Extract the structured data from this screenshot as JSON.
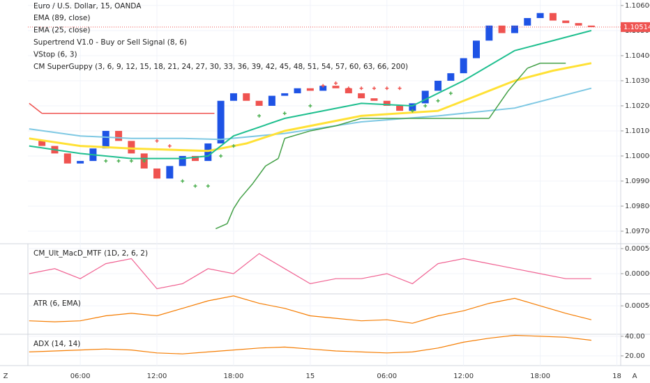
{
  "chart_data": [
    {
      "type": "candlestick",
      "title": "Euro / U.S. Dollar, 15, OANDA",
      "x": [
        2,
        3,
        4,
        5,
        6,
        7,
        8,
        9,
        10,
        11,
        12,
        13,
        14,
        15,
        16,
        17,
        18,
        19,
        20,
        21,
        22,
        23,
        24,
        25,
        26,
        27,
        28,
        29,
        30,
        31,
        32,
        33,
        34,
        35,
        36,
        37,
        38,
        39,
        40,
        41,
        42,
        43,
        44,
        45,
        46
      ],
      "close": [
        1.1006,
        1.1004,
        1.1001,
        1.0997,
        1.0998,
        1.1003,
        1.101,
        1.1006,
        1.1001,
        1.0995,
        1.0991,
        1.0996,
        1.1,
        1.0998,
        1.1005,
        1.1022,
        1.1025,
        1.1022,
        1.102,
        1.1024,
        1.1025,
        1.1027,
        1.1026,
        1.1028,
        1.1027,
        1.1025,
        1.1023,
        1.1022,
        1.102,
        1.1018,
        1.1021,
        1.1026,
        1.103,
        1.1033,
        1.1039,
        1.1046,
        1.1052,
        1.1049,
        1.1052,
        1.1055,
        1.1057,
        1.1054,
        1.1053,
        1.1052,
        1.10514
      ],
      "up_color": "#1e53e5",
      "down_color": "#ef5350",
      "series": [
        {
          "name": "EMA (89, close)",
          "color": "#7ec8e3",
          "style": "line",
          "x": [
            2,
            6,
            10,
            14,
            17,
            22,
            28,
            34,
            40,
            46
          ],
          "values": [
            1.10108,
            1.1008,
            1.1007,
            1.1007,
            1.10066,
            1.1009,
            1.10136,
            1.1016,
            1.10191,
            1.1027
          ]
        },
        {
          "name": "EMA (25, close)",
          "color": "#ffe135",
          "style": "line",
          "x": [
            2,
            6,
            10,
            16,
            19,
            22,
            28,
            34,
            37,
            40,
            43,
            46
          ],
          "values": [
            1.1007,
            1.1004,
            1.1003,
            1.1002,
            1.1005,
            1.101,
            1.1016,
            1.1018,
            1.1024,
            1.103,
            1.1034,
            1.1037
          ]
        },
        {
          "name": "Supertrend V1.0 - Buy or Sell Signal (8, 6)",
          "color": "#43a047",
          "style": "segments",
          "x": [
            2,
            3,
            16.5,
            16.6,
            16.6,
            17.5,
            18,
            18.5,
            19.5,
            20.5,
            21.5,
            22,
            24,
            26,
            28,
            38,
            39.5,
            41,
            42,
            44
          ],
          "values": [
            1.1021,
            1.1017,
            1.1017,
            null,
            1.0971,
            1.0973,
            1.0979,
            1.0983,
            1.0989,
            1.0996,
            1.0999,
            1.1007,
            1.101,
            1.1012,
            1.1015,
            1.1015,
            1.1026,
            1.1035,
            1.1037,
            1.1037
          ],
          "colors": [
            "#ef5350",
            "#ef5350",
            "#ef5350",
            "#ef5350",
            "#43a047",
            "#43a047",
            "#43a047",
            "#43a047",
            "#43a047",
            "#43a047",
            "#43a047",
            "#43a047",
            "#43a047",
            "#43a047",
            "#43a047",
            "#43a047",
            "#43a047",
            "#43a047",
            "#43a047",
            "#43a047"
          ]
        },
        {
          "name": "VStop (6, 3)",
          "color": "#4caf50",
          "style": "cross",
          "x": [
            8,
            9,
            10,
            11,
            12,
            13,
            14,
            15,
            16,
            17,
            18,
            20,
            22,
            24,
            25,
            26,
            27,
            28,
            29,
            30,
            31,
            32,
            33,
            34,
            35
          ],
          "values": [
            1.0998,
            1.0998,
            1.0998,
            1.0998,
            1.1006,
            1.1004,
            1.099,
            1.0988,
            1.0988,
            1.1,
            1.1004,
            1.1016,
            1.1017,
            1.102,
            1.1028,
            1.1029,
            1.1027,
            1.1027,
            1.1027,
            1.1027,
            1.1027,
            1.1018,
            1.102,
            1.1022,
            1.1025
          ],
          "colors": [
            "#4caf50",
            "#4caf50",
            "#4caf50",
            "#4caf50",
            "#ef5350",
            "#ef5350",
            "#4caf50",
            "#4caf50",
            "#4caf50",
            "#4caf50",
            "#4caf50",
            "#4caf50",
            "#4caf50",
            "#4caf50",
            "#ef5350",
            "#ef5350",
            "#ef5350",
            "#ef5350",
            "#ef5350",
            "#ef5350",
            "#ef5350",
            "#4caf50",
            "#4caf50",
            "#4caf50",
            "#4caf50"
          ]
        },
        {
          "name": "CM SuperGuppy (3, 6, 9, 12, 15, 18, 21, 24, 27, 30, 33, 36, 39, 42, 45, 48, 51, 54, 57, 60, 63, 66, 200)",
          "color": "#1fbf8f",
          "style": "line",
          "x": [
            2,
            6,
            10,
            14,
            16,
            18,
            22,
            28,
            32,
            36,
            40,
            46
          ],
          "values": [
            1.1004,
            1.1001,
            1.0999,
            1.0999,
            1.1,
            1.1008,
            1.1015,
            1.1021,
            1.102,
            1.103,
            1.1042,
            1.105
          ]
        }
      ],
      "last_price": {
        "value": 1.10514,
        "label": "1.10514"
      },
      "xlim": [
        1.9,
        48.3
      ],
      "xticks": [
        {
          "value": 6,
          "label": "06:00"
        },
        {
          "value": 12,
          "label": "12:00"
        },
        {
          "value": 18,
          "label": "18:00"
        },
        {
          "value": 24,
          "label": "15"
        },
        {
          "value": 30,
          "label": "06:00"
        },
        {
          "value": 36,
          "label": "12:00"
        },
        {
          "value": 42,
          "label": "18:00"
        },
        {
          "value": 48,
          "label": "18"
        }
      ],
      "ylim": [
        1.0965,
        1.10622
      ],
      "yticks": [
        {
          "value": 1.097,
          "label": "1.09700"
        },
        {
          "value": 1.098,
          "label": "1.09800"
        },
        {
          "value": 1.099,
          "label": "1.09900"
        },
        {
          "value": 1.1,
          "label": "1.10000"
        },
        {
          "value": 1.101,
          "label": "1.10100"
        },
        {
          "value": 1.102,
          "label": "1.10200"
        },
        {
          "value": 1.103,
          "label": "1.10300"
        },
        {
          "value": 1.104,
          "label": "1.10400"
        },
        {
          "value": 1.105,
          "label": "1.10500"
        },
        {
          "value": 1.106,
          "label": "1.10600"
        }
      ],
      "grid": true
    },
    {
      "type": "line",
      "title": "CM_Ult_MacD_MTF (1D, 2, 6, 2)",
      "x": [
        2,
        4,
        6,
        8,
        10,
        12,
        14,
        16,
        18,
        20,
        22,
        24,
        26,
        28,
        30,
        32,
        34,
        36,
        38,
        40,
        42,
        44,
        46
      ],
      "series": [
        {
          "color": "#f06292",
          "values": [
            0,
            0.0001,
            -0.0001,
            0.0002,
            0.0003,
            -0.0003,
            -0.0002,
            0.0001,
            0,
            0.0004,
            0.0001,
            -0.0002,
            -0.0001,
            -0.0001,
            0,
            -0.0002,
            0.0002,
            0.0003,
            0.0002,
            0.0001,
            0,
            -0.0001,
            -0.0001
          ]
        }
      ],
      "ylim": [
        -0.000403,
        0.000597
      ],
      "yticks": [
        {
          "value": 0,
          "label": "0.00000"
        },
        {
          "value": 0.0005,
          "label": "0.00050"
        }
      ]
    },
    {
      "type": "line",
      "title": "ATR (6, EMA)",
      "x": [
        2,
        4,
        6,
        8,
        10,
        12,
        14,
        16,
        18,
        20,
        22,
        24,
        26,
        28,
        30,
        32,
        34,
        36,
        38,
        40,
        42,
        44,
        46
      ],
      "series": [
        {
          "color": "#f57c00",
          "values": [
            0.0002,
            0.00018,
            0.0002,
            0.0003,
            0.00035,
            0.0003,
            0.00045,
            0.0006,
            0.0007,
            0.00055,
            0.00045,
            0.0003,
            0.00025,
            0.0002,
            0.00022,
            0.00015,
            0.0003,
            0.0004,
            0.00055,
            0.00065,
            0.0005,
            0.00035,
            0.00022
          ]
        }
      ],
      "ylim": [
        -7e-05,
        0.00074
      ],
      "yticks": [
        {
          "value": 0.0005,
          "label": "0.00050"
        }
      ]
    },
    {
      "type": "line",
      "title": "ADX (14, 14)",
      "x": [
        2,
        4,
        6,
        8,
        10,
        12,
        14,
        16,
        18,
        20,
        22,
        24,
        26,
        28,
        30,
        32,
        34,
        36,
        38,
        40,
        42,
        44,
        46
      ],
      "series": [
        {
          "color": "#f57c00",
          "values": [
            24,
            25,
            26,
            27,
            26,
            23,
            22,
            24,
            26,
            28,
            29,
            27,
            25,
            24,
            23,
            24,
            28,
            34,
            38,
            41,
            40,
            39,
            36
          ]
        }
      ],
      "ylim": [
        10,
        42.1
      ],
      "yticks": [
        {
          "value": 20,
          "label": "20.00"
        },
        {
          "value": 40,
          "label": "40.00"
        }
      ]
    }
  ],
  "ui": {
    "left_button": "Z",
    "right_button": "A"
  }
}
